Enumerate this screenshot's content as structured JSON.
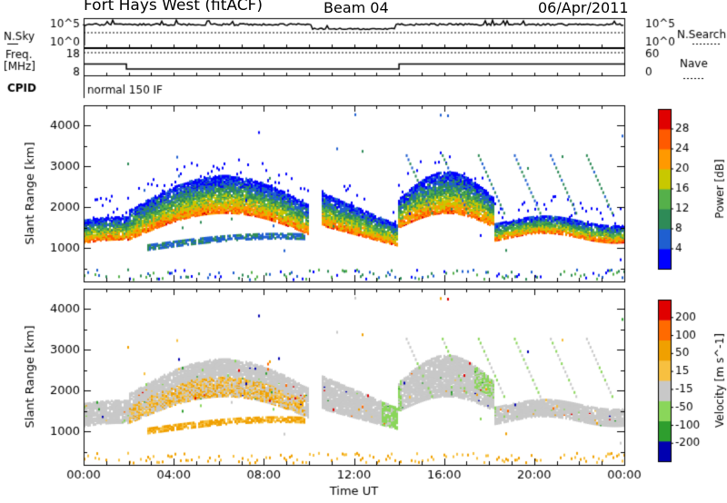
{
  "header": {
    "station": "Fort Hays West (fitACF)",
    "beam": "Beam 04",
    "date": "06/Apr/2011"
  },
  "noise_panel": {
    "left_label": "N.Sky",
    "right_label": "N.Search",
    "left_ticks": [
      "10^5",
      "10^0"
    ],
    "right_ticks": [
      "10^5",
      "10^0"
    ]
  },
  "freq_panel": {
    "left_label_1": "Freq.",
    "left_label_2": "[MHz]",
    "right_label": "Nave",
    "left_ticks": [
      "18",
      "8"
    ],
    "right_ticks": [
      "60",
      "0"
    ]
  },
  "cpid": {
    "label": "CPID",
    "value": "normal 150 IF"
  },
  "axes": {
    "x_ticks": [
      "00:00",
      "04:00",
      "08:00",
      "12:00",
      "16:00",
      "20:00",
      "00:00"
    ],
    "x_label": "Time UT",
    "y_ticks": [
      "1000",
      "2000",
      "3000",
      "4000"
    ],
    "y_label": "Slant Range [km]"
  },
  "power_colorbar": {
    "title": "Power [dB]",
    "ticks": [
      "28",
      "24",
      "20",
      "16",
      "12",
      "8",
      "4"
    ]
  },
  "velocity_colorbar": {
    "title": "Velocity [m s^-1]",
    "ticks": [
      "200",
      "100",
      "50",
      "15",
      "-15",
      "-50",
      "-100",
      "-200"
    ]
  },
  "chart_data": {
    "type": "heatmap",
    "x_range_hours": [
      0,
      24
    ],
    "y_range_km": [
      180,
      4500
    ],
    "frequency_mhz": [
      {
        "from": 0.0,
        "to": 1.9,
        "value": 12.5
      },
      {
        "from": 1.9,
        "to": 14.0,
        "value": 10.5
      },
      {
        "from": 14.0,
        "to": 24.0,
        "value": 12.5
      }
    ],
    "power_colorscale": [
      "#0000ff",
      "#1f5fd0",
      "#2e8b57",
      "#55b04a",
      "#c8c800",
      "#ff9900",
      "#ff5a00",
      "#e00000"
    ],
    "velocity_colorscale": [
      "#e00000",
      "#ff6a00",
      "#f0a000",
      "#f7c040",
      "#c8c8c8",
      "#8ad65a",
      "#2e9e2e",
      "#0000b0"
    ],
    "echo_bands": [
      {
        "start": 0.0,
        "end": 2.0,
        "center_km": 1450,
        "width_km": 550
      },
      {
        "start": 2.0,
        "end": 9.7,
        "center_km": 1950,
        "width_km": 850
      },
      {
        "start": 2.8,
        "end": 9.8,
        "center_km": 1150,
        "width_km": 200
      },
      {
        "start": 10.5,
        "end": 13.9,
        "center_km": 1650,
        "width_km": 700
      },
      {
        "start": 14.0,
        "end": 18.2,
        "center_km": 1800,
        "width_km": 900
      },
      {
        "start": 18.2,
        "end": 24.0,
        "center_km": 1480,
        "width_km": 450
      }
    ]
  }
}
